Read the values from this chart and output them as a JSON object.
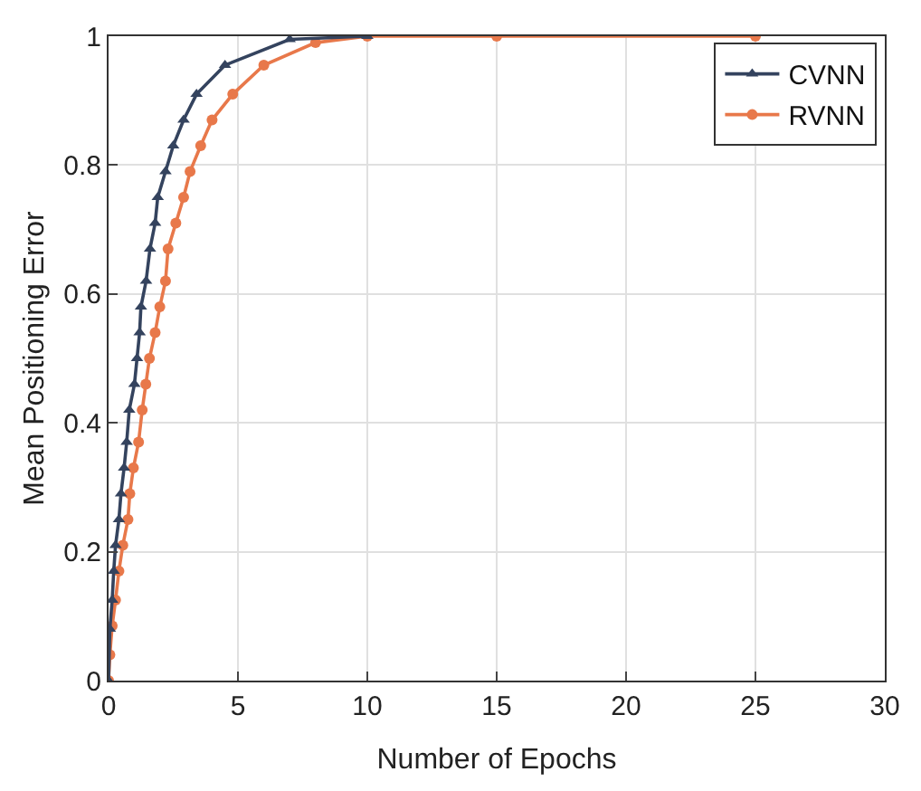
{
  "chart_data": {
    "type": "line",
    "xlabel": "Number of Epochs",
    "ylabel": "Mean Positioning Error",
    "xlim": [
      0,
      30
    ],
    "xticks": [
      0,
      5,
      10,
      15,
      20,
      25,
      30
    ],
    "ylim": [
      0,
      1
    ],
    "yticks": [
      0,
      0.2,
      0.4,
      0.6,
      0.8,
      1
    ],
    "grid": true,
    "legend": "top right",
    "line_style": "solid",
    "series": [
      {
        "name": "CVNN",
        "color": "#34435e",
        "marker": "triangle",
        "x": [
          0,
          0.05,
          0.14,
          0.2,
          0.27,
          0.4,
          0.48,
          0.6,
          0.7,
          0.8,
          1.0,
          1.1,
          1.2,
          1.25,
          1.45,
          1.6,
          1.8,
          1.9,
          2.2,
          2.5,
          2.9,
          3.4,
          4.5,
          7,
          10
        ],
        "values": [
          0,
          0.08,
          0.125,
          0.17,
          0.21,
          0.25,
          0.29,
          0.33,
          0.37,
          0.42,
          0.46,
          0.5,
          0.54,
          0.58,
          0.62,
          0.67,
          0.71,
          0.75,
          0.79,
          0.83,
          0.87,
          0.91,
          0.955,
          0.995,
          1
        ]
      },
      {
        "name": "RVNN",
        "color": "#e8784a",
        "marker": "circle",
        "x": [
          0,
          0.05,
          0.14,
          0.27,
          0.4,
          0.55,
          0.75,
          0.82,
          0.96,
          1.16,
          1.3,
          1.44,
          1.58,
          1.8,
          1.98,
          2.2,
          2.3,
          2.6,
          2.9,
          3.15,
          3.56,
          4.0,
          4.8,
          6.0,
          8,
          10,
          15,
          25
        ],
        "values": [
          0,
          0.04,
          0.085,
          0.125,
          0.17,
          0.21,
          0.25,
          0.29,
          0.33,
          0.37,
          0.42,
          0.46,
          0.5,
          0.54,
          0.58,
          0.62,
          0.67,
          0.71,
          0.75,
          0.79,
          0.83,
          0.87,
          0.91,
          0.955,
          0.99,
          1,
          1,
          1
        ]
      }
    ]
  }
}
